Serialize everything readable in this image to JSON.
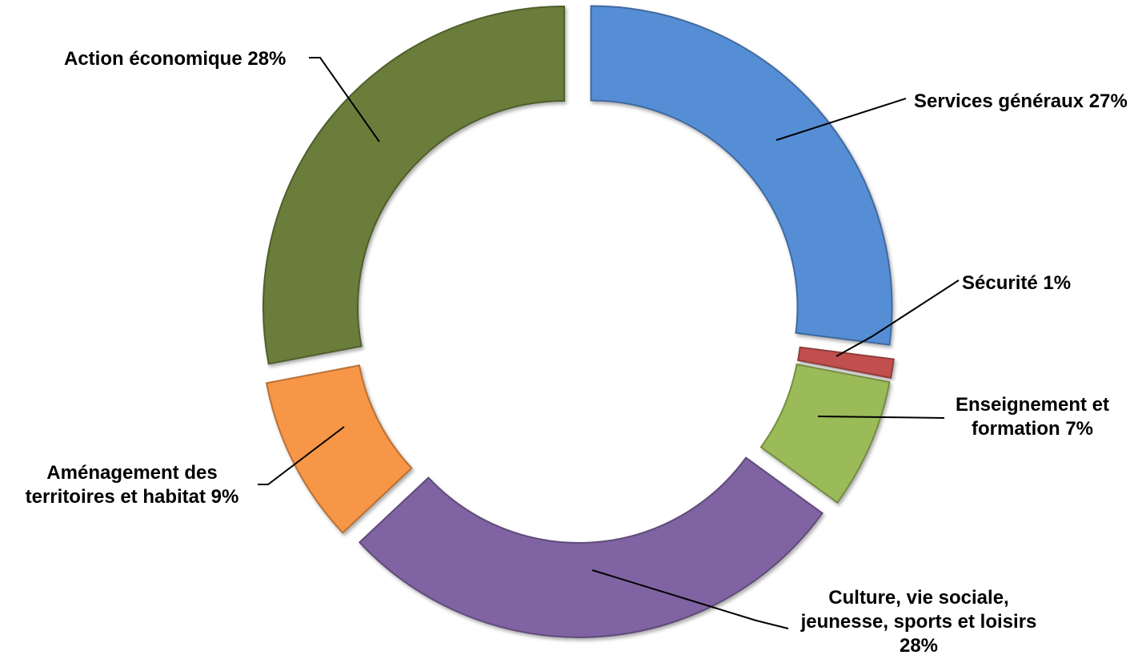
{
  "chart_data": {
    "type": "donut",
    "slices": [
      {
        "label": "Services généraux",
        "value": 27,
        "color": "#558ED5",
        "exploded": true
      },
      {
        "label": "Sécurité",
        "value": 1,
        "color": "#C0504D",
        "exploded": true
      },
      {
        "label": "Enseignement et formation",
        "value": 7,
        "color": "#9BBB59",
        "exploded": true
      },
      {
        "label": "Culture, vie sociale, jeunesse, sports et loisirs",
        "value": 28,
        "color": "#8064A2",
        "exploded": true
      },
      {
        "label": "Aménagement des territoires et habitat",
        "value": 9,
        "color": "#F79646",
        "exploded": true
      },
      {
        "label": "Action économique",
        "value": 28,
        "color": "#6B7D3A",
        "exploded": true
      }
    ],
    "labels": {
      "services": {
        "lines": [
          "Services généraux 27%"
        ]
      },
      "securite": {
        "lines": [
          "Sécurité 1%"
        ]
      },
      "enseignement": {
        "lines": [
          "Enseignement et",
          "formation 7%"
        ]
      },
      "culture": {
        "lines": [
          "Culture, vie sociale,",
          "jeunesse, sports  et loisirs",
          "28%"
        ]
      },
      "amenagement": {
        "lines": [
          "Aménagement des",
          "territoires et habitat  9%"
        ]
      },
      "action": {
        "lines": [
          "Action économique  28%"
        ]
      }
    },
    "title": "",
    "legend": "none",
    "data_labels": "outside with leader lines"
  }
}
